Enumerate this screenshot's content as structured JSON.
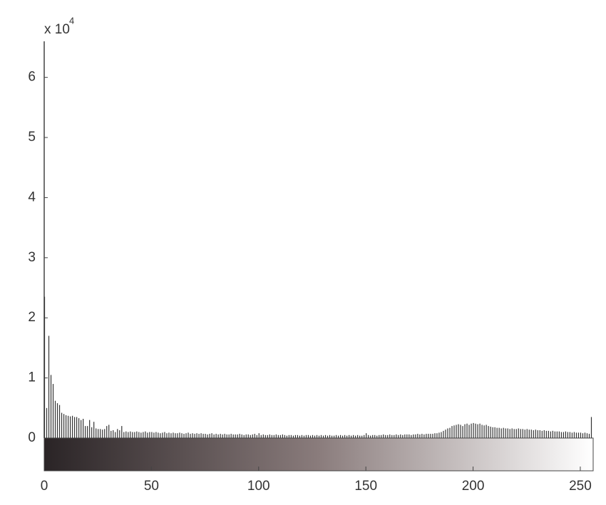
{
  "chart_data": {
    "type": "stem",
    "y_multiplier": "x 10",
    "y_exponent": "4",
    "xlim": [
      0,
      256
    ],
    "ylim": [
      0,
      6.6
    ],
    "xticks": [
      0,
      50,
      100,
      150,
      200,
      250
    ],
    "yticks": [
      0,
      1,
      2,
      3,
      4,
      5,
      6
    ],
    "color": "#333333",
    "colorbar": true,
    "values": [
      2.35,
      0.5,
      1.7,
      1.05,
      0.9,
      0.62,
      0.58,
      0.55,
      0.42,
      0.4,
      0.38,
      0.37,
      0.36,
      0.37,
      0.35,
      0.35,
      0.33,
      0.3,
      0.32,
      0.2,
      0.2,
      0.3,
      0.18,
      0.27,
      0.16,
      0.15,
      0.15,
      0.14,
      0.15,
      0.2,
      0.22,
      0.12,
      0.13,
      0.1,
      0.15,
      0.13,
      0.2,
      0.1,
      0.11,
      0.1,
      0.11,
      0.1,
      0.1,
      0.11,
      0.1,
      0.09,
      0.1,
      0.11,
      0.09,
      0.1,
      0.1,
      0.09,
      0.1,
      0.09,
      0.08,
      0.09,
      0.1,
      0.08,
      0.09,
      0.08,
      0.09,
      0.08,
      0.08,
      0.09,
      0.08,
      0.07,
      0.08,
      0.09,
      0.07,
      0.08,
      0.07,
      0.08,
      0.07,
      0.08,
      0.07,
      0.07,
      0.06,
      0.07,
      0.08,
      0.06,
      0.07,
      0.06,
      0.07,
      0.06,
      0.07,
      0.06,
      0.06,
      0.07,
      0.06,
      0.06,
      0.06,
      0.07,
      0.06,
      0.05,
      0.06,
      0.06,
      0.05,
      0.06,
      0.07,
      0.05,
      0.08,
      0.05,
      0.06,
      0.05,
      0.05,
      0.06,
      0.05,
      0.05,
      0.06,
      0.05,
      0.05,
      0.06,
      0.05,
      0.04,
      0.05,
      0.05,
      0.04,
      0.05,
      0.05,
      0.04,
      0.05,
      0.04,
      0.05,
      0.05,
      0.04,
      0.05,
      0.04,
      0.05,
      0.04,
      0.05,
      0.04,
      0.05,
      0.04,
      0.05,
      0.04,
      0.04,
      0.05,
      0.04,
      0.05,
      0.04,
      0.05,
      0.04,
      0.05,
      0.04,
      0.05,
      0.04,
      0.05,
      0.04,
      0.04,
      0.05,
      0.08,
      0.05,
      0.04,
      0.05,
      0.05,
      0.04,
      0.05,
      0.05,
      0.06,
      0.05,
      0.05,
      0.06,
      0.05,
      0.05,
      0.06,
      0.05,
      0.06,
      0.05,
      0.06,
      0.06,
      0.06,
      0.05,
      0.06,
      0.06,
      0.07,
      0.06,
      0.07,
      0.06,
      0.07,
      0.07,
      0.07,
      0.07,
      0.08,
      0.08,
      0.09,
      0.1,
      0.12,
      0.14,
      0.16,
      0.17,
      0.2,
      0.21,
      0.22,
      0.23,
      0.22,
      0.2,
      0.23,
      0.24,
      0.22,
      0.24,
      0.25,
      0.24,
      0.23,
      0.24,
      0.22,
      0.21,
      0.22,
      0.2,
      0.19,
      0.18,
      0.18,
      0.17,
      0.17,
      0.16,
      0.17,
      0.16,
      0.16,
      0.15,
      0.16,
      0.15,
      0.15,
      0.16,
      0.15,
      0.15,
      0.14,
      0.15,
      0.14,
      0.14,
      0.13,
      0.14,
      0.13,
      0.13,
      0.12,
      0.13,
      0.12,
      0.12,
      0.11,
      0.12,
      0.11,
      0.11,
      0.11,
      0.1,
      0.1,
      0.11,
      0.1,
      0.1,
      0.09,
      0.1,
      0.09,
      0.09,
      0.09,
      0.08,
      0.09,
      0.08,
      0.07,
      0.35
    ]
  }
}
